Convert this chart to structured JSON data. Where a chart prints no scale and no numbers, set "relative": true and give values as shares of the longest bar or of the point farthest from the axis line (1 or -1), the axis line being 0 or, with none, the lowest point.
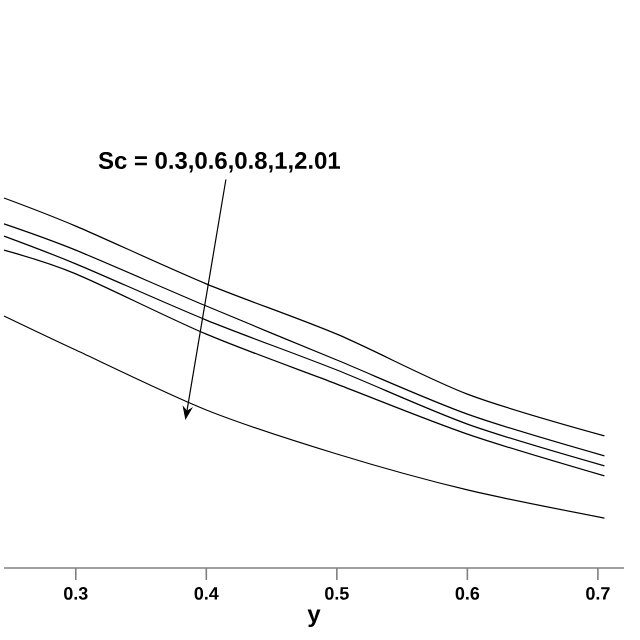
{
  "chart_data": {
    "type": "line",
    "relative": true,
    "xlabel": "y",
    "x": [
      0.245,
      0.3,
      0.4,
      0.5,
      0.6,
      0.705
    ],
    "xlim": [
      0.245,
      0.72
    ],
    "xticks": [
      0.3,
      0.4,
      0.5,
      0.6,
      0.7
    ],
    "tick_labels": "x",
    "marker": "none",
    "line_style": "solid",
    "annotations": [
      "Sc = 0.3,0.6,0.8,1,2.01"
    ],
    "series": [
      {
        "color": "#000000",
        "values": [
          1,
          0.924,
          0.768,
          0.632,
          0.47,
          0.357
        ]
      },
      {
        "color": "#000000",
        "values": [
          0.93,
          0.859,
          0.708,
          0.562,
          0.416,
          0.303
        ]
      },
      {
        "color": "#000000",
        "values": [
          0.897,
          0.822,
          0.67,
          0.535,
          0.389,
          0.276
        ]
      },
      {
        "color": "#000000",
        "values": [
          0.859,
          0.795,
          0.632,
          0.497,
          0.362,
          0.249
        ]
      },
      {
        "color": "#000000",
        "values": [
          0.681,
          0.589,
          0.427,
          0.308,
          0.211,
          0.135
        ]
      }
    ]
  }
}
